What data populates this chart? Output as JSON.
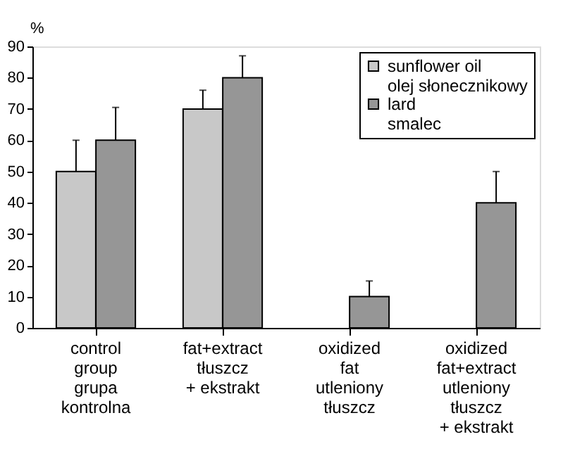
{
  "chart_data": {
    "type": "bar",
    "ylabel": "%",
    "categories": [
      "control\ngroup\ngrupa\nkontrolna",
      "fat+extract\ntłuszcz\n+ ekstrakt",
      "oxidized\nfat\nutleniony\ntłuszcz",
      "oxidized\nfat+extract\nutleniony\ntłuszcz\n+ ekstrakt"
    ],
    "series": [
      {
        "name": "sunflower oil\nolej słonecznikowy",
        "color": "#c8c8c8",
        "values": [
          50,
          70,
          null,
          null
        ],
        "errors": [
          [
            50,
            60
          ],
          [
            70,
            76
          ],
          null,
          null
        ]
      },
      {
        "name": "lard\nsmalec",
        "color": "#969696",
        "values": [
          60,
          80,
          10,
          40
        ],
        "errors": [
          [
            60,
            70.5
          ],
          [
            80,
            87
          ],
          [
            10,
            15
          ],
          [
            40,
            50
          ]
        ]
      }
    ],
    "ylim": [
      0,
      90
    ],
    "yticks": [
      0,
      10,
      20,
      30,
      40,
      50,
      60,
      70,
      80,
      90
    ],
    "grid": false,
    "legend": "top right"
  }
}
